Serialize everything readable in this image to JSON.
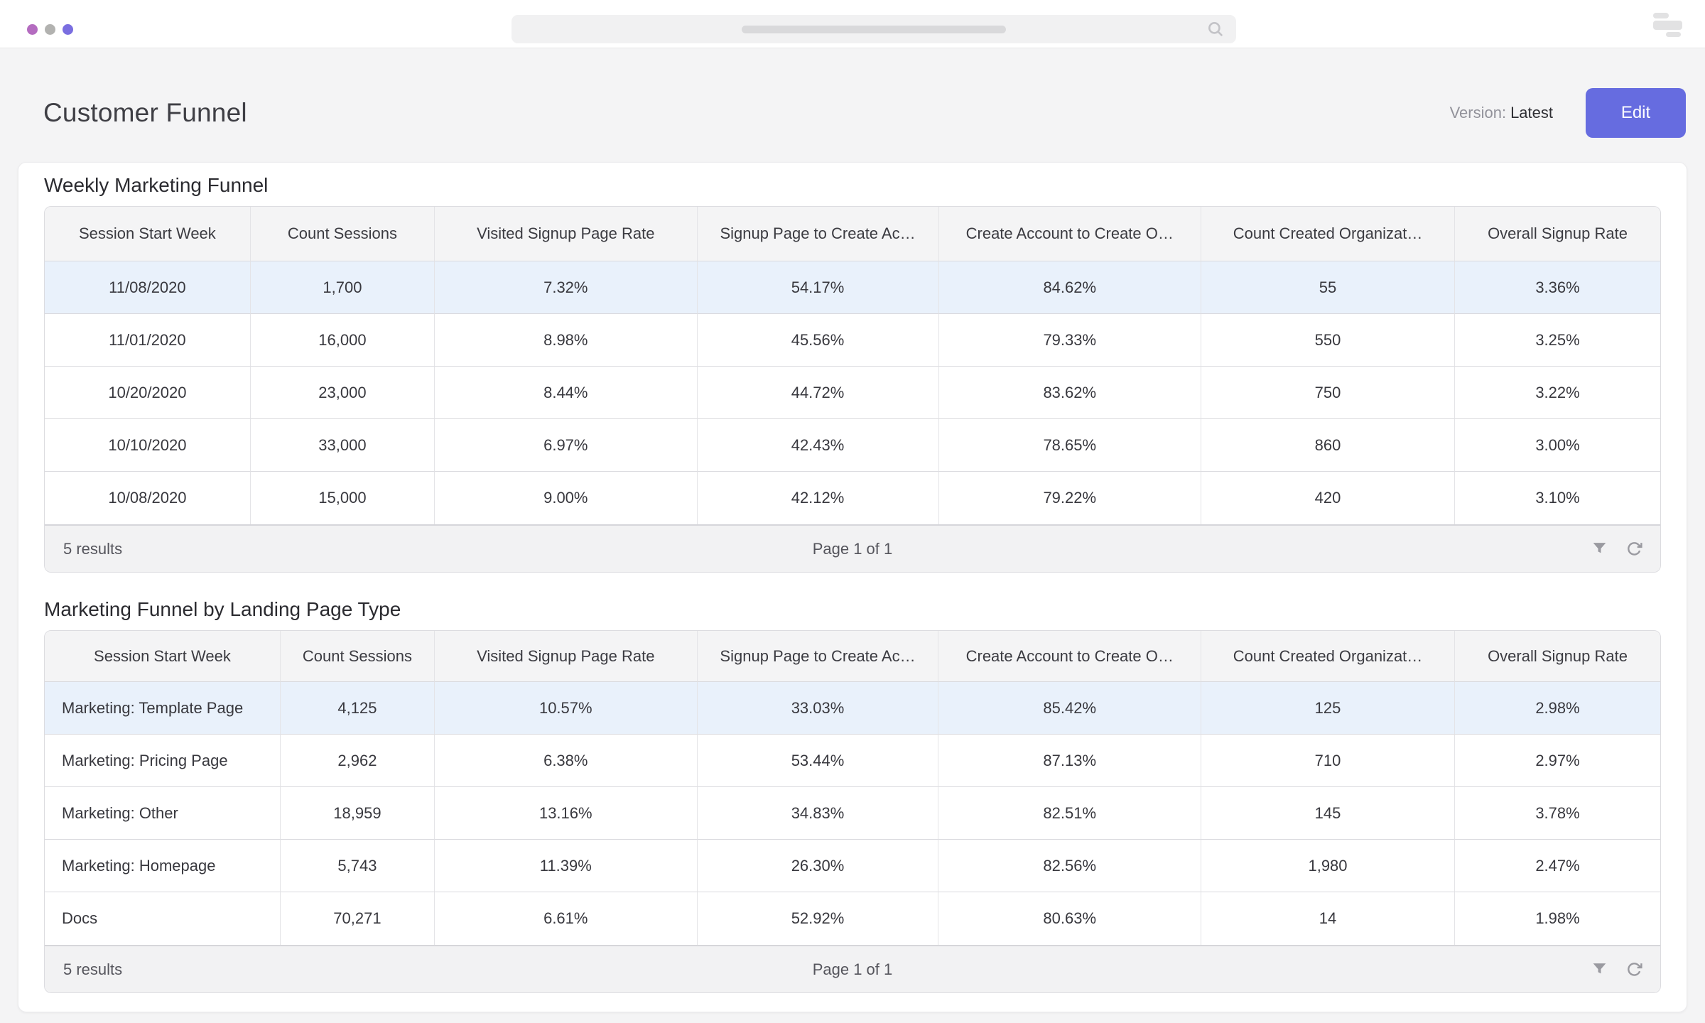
{
  "window": {
    "dot_colors": [
      "#b46cc0",
      "#b2b2b0",
      "#7a6ee0"
    ],
    "icons": [
      "window-dot",
      "search-icon",
      "layers-logo-icon",
      "filter-icon",
      "refresh-icon"
    ]
  },
  "header": {
    "title": "Customer Funnel",
    "version_label": "Version:",
    "version_value": "Latest",
    "edit_button": "Edit"
  },
  "colors": {
    "accent": "#666ce0",
    "row_highlight": "#e9f1fb",
    "header_background": "#f4f4f5"
  },
  "tables": [
    {
      "title": "Weekly Marketing Funnel",
      "columns": [
        "Session Start Week",
        "Count Sessions",
        "Visited Signup Page Rate",
        "Signup Page to Create Ac…",
        "Create Account to Create O…",
        "Count Created Organizat…",
        "Overall Signup Rate"
      ],
      "rows": [
        [
          "11/08/2020",
          "1,700",
          "7.32%",
          "54.17%",
          "84.62%",
          "55",
          "3.36%"
        ],
        [
          "11/01/2020",
          "16,000",
          "8.98%",
          "45.56%",
          "79.33%",
          "550",
          "3.25%"
        ],
        [
          "10/20/2020",
          "23,000",
          "8.44%",
          "44.72%",
          "83.62%",
          "750",
          "3.22%"
        ],
        [
          "10/10/2020",
          "33,000",
          "6.97%",
          "42.43%",
          "78.65%",
          "860",
          "3.00%"
        ],
        [
          "10/08/2020",
          "15,000",
          "9.00%",
          "42.12%",
          "79.22%",
          "420",
          "3.10%"
        ]
      ],
      "highlighted_row_index": 0,
      "results_text": "5 results",
      "page_text": "Page 1 of 1"
    },
    {
      "title": "Marketing Funnel by Landing Page Type",
      "columns": [
        "Session Start Week",
        "Count Sessions",
        "Visited Signup Page Rate",
        "Signup Page to Create Ac…",
        "Create Account to Create O…",
        "Count Created Organizat…",
        "Overall Signup Rate"
      ],
      "rows": [
        [
          "Marketing: Template Page",
          "4,125",
          "10.57%",
          "33.03%",
          "85.42%",
          "125",
          "2.98%"
        ],
        [
          "Marketing: Pricing Page",
          "2,962",
          "6.38%",
          "53.44%",
          "87.13%",
          "710",
          "2.97%"
        ],
        [
          "Marketing: Other",
          "18,959",
          "13.16%",
          "34.83%",
          "82.51%",
          "145",
          "3.78%"
        ],
        [
          "Marketing: Homepage",
          "5,743",
          "11.39%",
          "26.30%",
          "82.56%",
          "1,980",
          "2.47%"
        ],
        [
          "Docs",
          "70,271",
          "6.61%",
          "52.92%",
          "80.63%",
          "14",
          "1.98%"
        ]
      ],
      "highlighted_row_index": 0,
      "results_text": "5 results",
      "page_text": "Page 1 of 1"
    }
  ]
}
